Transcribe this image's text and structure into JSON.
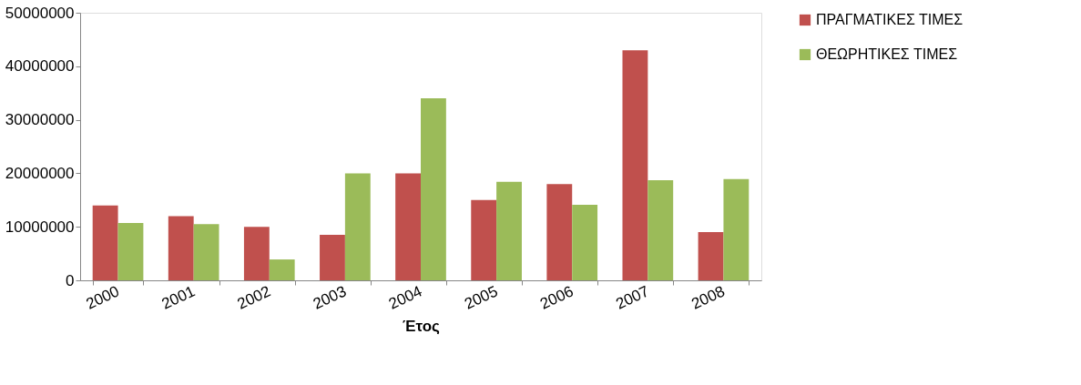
{
  "chart_data": {
    "type": "bar",
    "xlabel": "Έτος",
    "categories": [
      "2000",
      "2001",
      "2002",
      "2003",
      "2004",
      "2005",
      "2006",
      "2007",
      "2008"
    ],
    "series": [
      {
        "name": "ΠΡΑΓΜΑΤΙΚΕΣ ΤΙΜΕΣ",
        "color": "#c0504d",
        "values": [
          14000000,
          12000000,
          10000000,
          8500000,
          20000000,
          15000000,
          18000000,
          43000000,
          9000000
        ]
      },
      {
        "name": "ΘΕΩΡΗΤΙΚΕΣ ΤΙΜΕΣ",
        "color": "#9bbb59",
        "values": [
          10700000,
          10500000,
          3900000,
          20000000,
          34000000,
          18400000,
          14100000,
          18700000,
          18900000
        ]
      }
    ],
    "ylim": [
      0,
      50000000
    ],
    "yticks": [
      0,
      10000000,
      20000000,
      30000000,
      40000000,
      50000000
    ],
    "grid": false,
    "legend": "right"
  }
}
